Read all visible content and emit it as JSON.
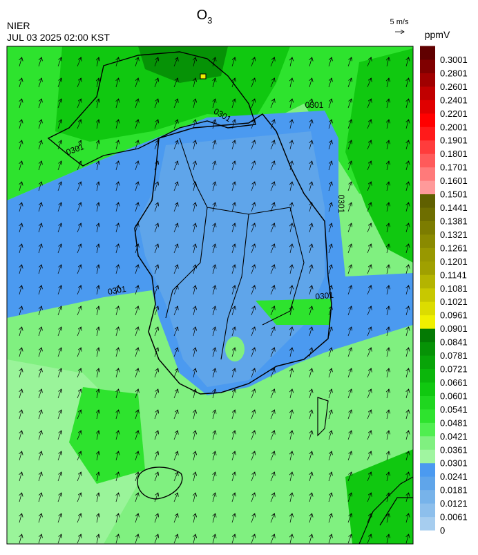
{
  "header": {
    "title": {
      "base": "O",
      "subscript": "3"
    },
    "organization": "NIER",
    "timestamp": "JUL 03 2025 02:00 KST",
    "wind_reference": "5 m/s"
  },
  "colorbar": {
    "unit": "ppmV",
    "levels": [
      0,
      0.0061,
      0.0121,
      0.0181,
      0.0241,
      0.0301,
      0.0361,
      0.0421,
      0.0481,
      0.0541,
      0.0601,
      0.0661,
      0.0721,
      0.0781,
      0.0841,
      0.0901,
      0.0961,
      0.1021,
      0.1081,
      0.1141,
      0.1201,
      0.1261,
      0.1321,
      0.1381,
      0.1441,
      0.1501,
      0.1601,
      0.1701,
      0.1801,
      0.1901,
      0.2001,
      0.2201,
      0.2401,
      0.2601,
      0.2801,
      0.3001
    ],
    "colors": [
      "#a6cdef",
      "#8dbfec",
      "#77b3ea",
      "#5fa5ea",
      "#4b9af0",
      "#a0f5a0",
      "#80f080",
      "#50ee50",
      "#2ee32e",
      "#1fd61f",
      "#10c810",
      "#0bb60b",
      "#08a408",
      "#069206",
      "#047a04",
      "#f0f000",
      "#dcdc00",
      "#c8c800",
      "#b4b400",
      "#a0a000",
      "#989800",
      "#8a8a00",
      "#7c7c00",
      "#6e6e00",
      "#606000",
      "#ff9a9a",
      "#ff7a7a",
      "#ff5a5a",
      "#ff3c3c",
      "#ff1a1a",
      "#ff0000",
      "#e00000",
      "#c00000",
      "#a00000",
      "#800000",
      "#600000"
    ]
  },
  "map": {
    "contour_labels": [
      "0301",
      "0301",
      "0301",
      "0301",
      "0301",
      "0301"
    ]
  }
}
